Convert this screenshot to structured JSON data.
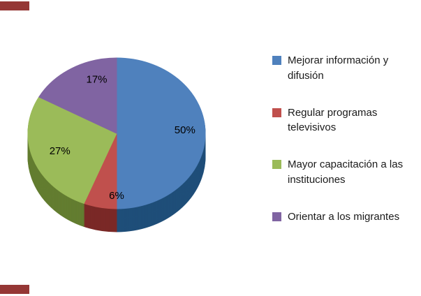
{
  "chart_data": {
    "type": "pie",
    "title": "",
    "effect": "3d",
    "direction": "clockwise",
    "start_angle_deg": 0,
    "legend_position": "right",
    "slices": [
      {
        "label": "Mejorar información y difusión",
        "value": 50,
        "pct_label": "50%",
        "color": "#4f81bd",
        "dark_color": "#1f4e79"
      },
      {
        "label": "Regular programas televisivos",
        "value": 6,
        "pct_label": "6%",
        "color": "#c0504d",
        "dark_color": "#7a2927"
      },
      {
        "label": "Mayor capacitación a las instituciones",
        "value": 27,
        "pct_label": "27%",
        "color": "#9bbb59",
        "dark_color": "#637d30"
      },
      {
        "label": "Orientar a los migrantes",
        "value": 17,
        "pct_label": "17%",
        "color": "#8064a2",
        "dark_color": "#4d3a63"
      }
    ],
    "label_color": "#000000"
  },
  "artifacts": {
    "top_left_bar_color": "#953735",
    "bottom_left_bar_color": "#953735"
  }
}
